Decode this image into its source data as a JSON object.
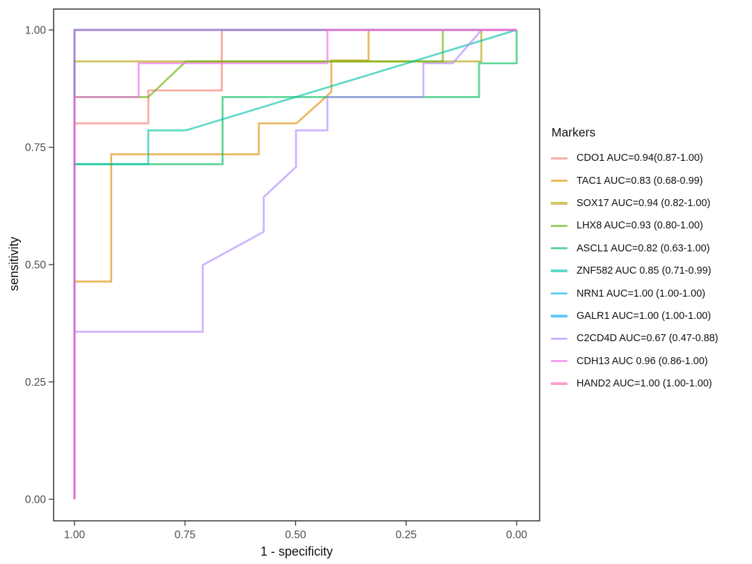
{
  "chart_data": {
    "type": "line",
    "subtype": "roc-curves-step",
    "title": "",
    "xlabel": "1 - specificity",
    "ylabel": "sensitivity",
    "xlim": [
      1.0,
      0.0
    ],
    "ylim": [
      0.0,
      1.0
    ],
    "x_axis_reversed": true,
    "grid": false,
    "panel_border_color": "#333333",
    "tick_label_color": "#4d4d4d",
    "line_opacity": 0.62,
    "line_width": 2.8,
    "x_ticks": [
      {
        "value": 1.0,
        "label": "1.00"
      },
      {
        "value": 0.75,
        "label": "0.75"
      },
      {
        "value": 0.5,
        "label": "0.50"
      },
      {
        "value": 0.25,
        "label": "0.25"
      },
      {
        "value": 0.0,
        "label": "0.00"
      }
    ],
    "y_ticks": [
      {
        "value": 1.0,
        "label": "1.00"
      },
      {
        "value": 0.75,
        "label": "0.75"
      },
      {
        "value": 0.5,
        "label": "0.50"
      },
      {
        "value": 0.25,
        "label": "0.25"
      },
      {
        "value": 0.0,
        "label": "0.00"
      }
    ],
    "legend": {
      "title": "Markers",
      "position": "right"
    },
    "series": [
      {
        "marker": "CDO1",
        "label": "CDO1 AUC=0.94(0.87-1.00)",
        "auc": 0.94,
        "ci": "0.87-1.00",
        "color": "#F8766D",
        "points": [
          [
            1,
            0
          ],
          [
            1,
            0.801
          ],
          [
            0.833,
            0.801
          ],
          [
            0.833,
            0.871
          ],
          [
            0.667,
            0.871
          ],
          [
            0.667,
            1
          ],
          [
            0,
            1
          ]
        ]
      },
      {
        "marker": "TAC1",
        "label": "TAC1 AUC=0.83 (0.68-0.99)",
        "auc": 0.83,
        "ci": "0.68-0.99",
        "color": "#DB8E00",
        "points": [
          [
            1,
            0
          ],
          [
            1,
            0.464
          ],
          [
            0.917,
            0.464
          ],
          [
            0.917,
            0.735
          ],
          [
            0.583,
            0.735
          ],
          [
            0.583,
            0.801
          ],
          [
            0.498,
            0.801
          ],
          [
            0.419,
            0.868
          ],
          [
            0.419,
            0.935
          ],
          [
            0.335,
            0.935
          ],
          [
            0.335,
            1
          ],
          [
            0,
            1
          ]
        ]
      },
      {
        "marker": "SOX17",
        "label": "SOX17 AUC=0.94 (0.82-1.00)",
        "auc": 0.94,
        "ci": "0.82-1.00",
        "color": "#AEA200",
        "points": [
          [
            1,
            0
          ],
          [
            1,
            0.933
          ],
          [
            0.08,
            0.933
          ],
          [
            0.08,
            1
          ],
          [
            0,
            1
          ]
        ]
      },
      {
        "marker": "LHX8",
        "label": "LHX8 AUC=0.93 (0.80-1.00)",
        "auc": 0.93,
        "ci": "0.80-1.00",
        "color": "#64B200",
        "points": [
          [
            1,
            0
          ],
          [
            1,
            0.857
          ],
          [
            0.833,
            0.857
          ],
          [
            0.748,
            0.933
          ],
          [
            0.167,
            0.933
          ],
          [
            0.167,
            1
          ],
          [
            0,
            1
          ]
        ]
      },
      {
        "marker": "ASCL1",
        "label": "ASCL1 AUC=0.82 (0.63-1.00)",
        "auc": 0.82,
        "ci": "0.63-1.00",
        "color": "#00BD5C",
        "points": [
          [
            1,
            0
          ],
          [
            1,
            0.714
          ],
          [
            0.665,
            0.714
          ],
          [
            0.665,
            0.857
          ],
          [
            0.085,
            0.857
          ],
          [
            0.085,
            0.929
          ],
          [
            0,
            0.929
          ],
          [
            0,
            1
          ]
        ]
      },
      {
        "marker": "ZNF582",
        "label": "ZNF582 AUC 0.85 (0.71-0.99)",
        "auc": 0.85,
        "ci": "0.71-0.99",
        "color": "#00C1A7",
        "points": [
          [
            1,
            0
          ],
          [
            1,
            0.714
          ],
          [
            0.833,
            0.714
          ],
          [
            0.833,
            0.786
          ],
          [
            0.748,
            0.786
          ],
          [
            0,
            1
          ]
        ]
      },
      {
        "marker": "NRN1",
        "label": "NRN1 AUC=1.00 (1.00-1.00)",
        "auc": 1.0,
        "ci": "1.00-1.00",
        "color": "#00BADE",
        "points": [
          [
            1,
            0
          ],
          [
            1,
            1
          ],
          [
            0,
            1
          ]
        ]
      },
      {
        "marker": "GALR1",
        "label": "GALR1 AUC=1.00 (1.00-1.00)",
        "auc": 1.0,
        "ci": "1.00-1.00",
        "color": "#00A6FF",
        "points": [
          [
            1,
            0
          ],
          [
            1,
            1
          ],
          [
            0,
            1
          ]
        ]
      },
      {
        "marker": "C2CD4D",
        "label": "C2CD4D AUC=0.67 (0.47-0.88)",
        "auc": 0.67,
        "ci": "0.47-0.88",
        "color": "#B385FF",
        "points": [
          [
            1,
            0
          ],
          [
            1,
            0.357
          ],
          [
            0.71,
            0.357
          ],
          [
            0.71,
            0.499
          ],
          [
            0.572,
            0.57
          ],
          [
            0.572,
            0.644
          ],
          [
            0.499,
            0.708
          ],
          [
            0.499,
            0.786
          ],
          [
            0.428,
            0.786
          ],
          [
            0.428,
            0.857
          ],
          [
            0.211,
            0.857
          ],
          [
            0.211,
            0.929
          ],
          [
            0.145,
            0.929
          ],
          [
            0.079,
            1
          ],
          [
            0,
            1
          ]
        ]
      },
      {
        "marker": "CDH13",
        "label": "CDH13 AUC 0.96 (0.86-1.00)",
        "auc": 0.96,
        "ci": "0.86-1.00",
        "color": "#EF67EB",
        "points": [
          [
            1,
            0
          ],
          [
            1,
            0.857
          ],
          [
            0.855,
            0.857
          ],
          [
            0.855,
            0.929
          ],
          [
            0.428,
            0.929
          ],
          [
            0.428,
            1
          ],
          [
            0,
            1
          ]
        ]
      },
      {
        "marker": "HAND2",
        "label": "HAND2 AUC=1.00 (1.00-1.00)",
        "auc": 1.0,
        "ci": "1.00-1.00",
        "color": "#FF63B6",
        "points": [
          [
            1,
            0
          ],
          [
            1,
            1
          ],
          [
            0,
            1
          ]
        ]
      }
    ]
  }
}
